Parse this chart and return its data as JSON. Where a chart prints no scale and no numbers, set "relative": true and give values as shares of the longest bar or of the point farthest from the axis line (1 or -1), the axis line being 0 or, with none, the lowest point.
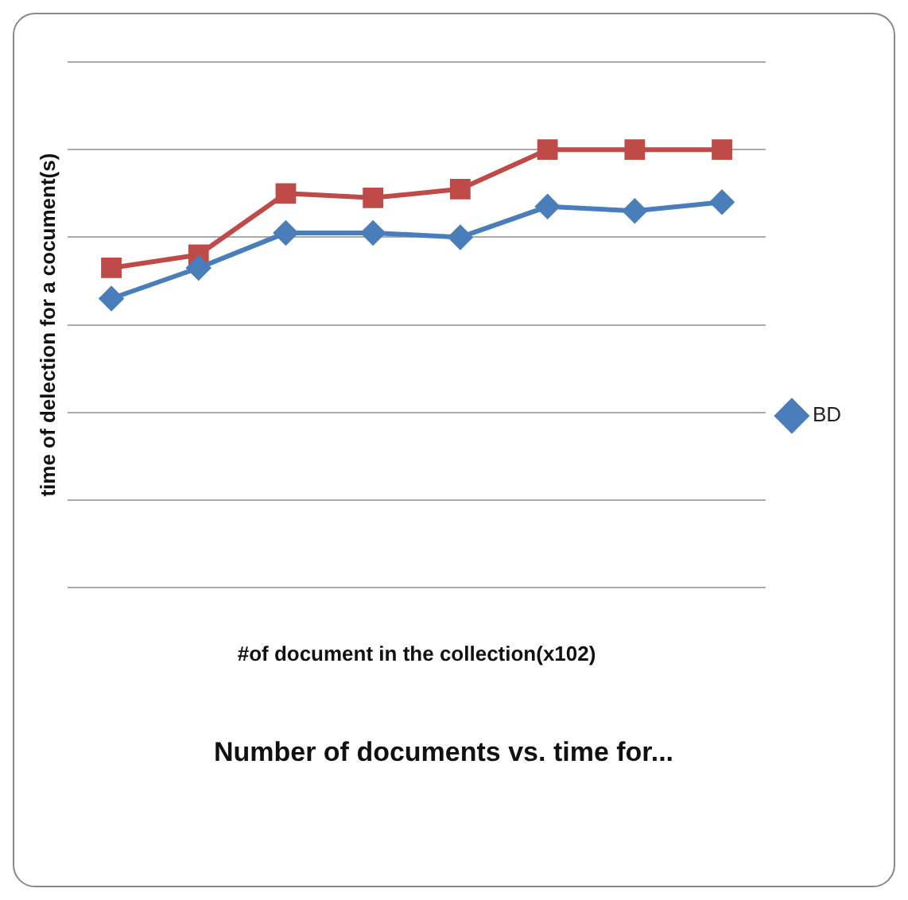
{
  "chart_data": {
    "type": "line",
    "title": "Number of documents vs. time for...",
    "xlabel": "#of document in the collection(x102)",
    "ylabel": "time of delection for a cocument(s)",
    "categories": [
      null,
      null,
      null,
      null,
      null,
      null,
      null,
      null
    ],
    "relative": true,
    "grid": "y",
    "legend": "right",
    "series": [
      {
        "name": "BD",
        "color": "#4a7ebb",
        "marker": "diamond",
        "values": [
          0.66,
          0.73,
          0.81,
          0.81,
          0.8,
          0.87,
          0.86,
          0.88
        ]
      },
      {
        "color": "#be4b48",
        "marker": "square",
        "values": [
          0.73,
          0.76,
          0.9,
          0.89,
          0.91,
          1,
          1,
          1
        ]
      }
    ]
  }
}
